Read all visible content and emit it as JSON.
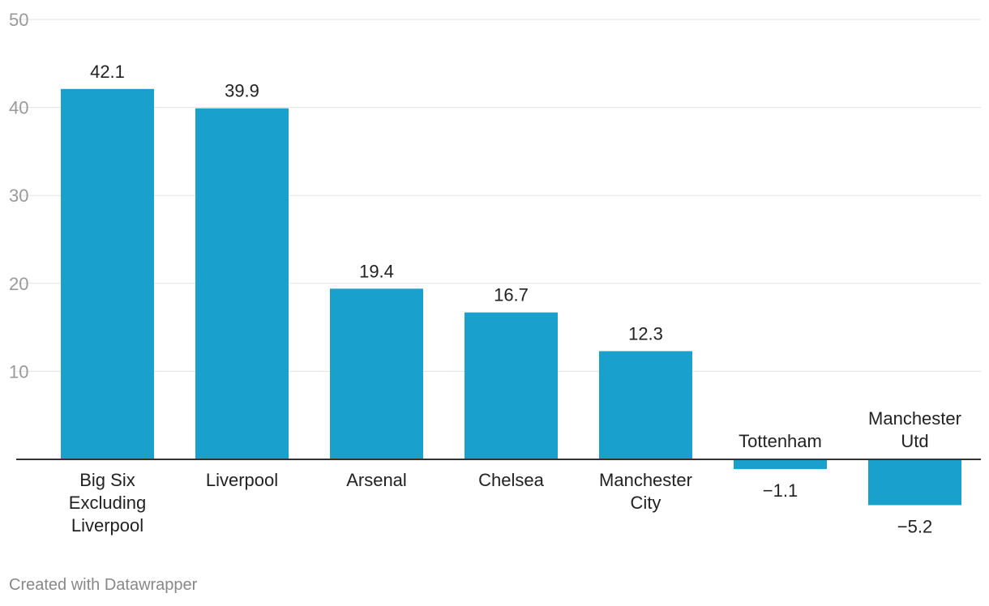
{
  "chart_data": {
    "type": "bar",
    "categories": [
      "Big Six Excluding Liverpool",
      "Liverpool",
      "Arsenal",
      "Chelsea",
      "Manchester City",
      "Tottenham",
      "Manchester Utd"
    ],
    "category_lines": [
      [
        "Big Six",
        "Excluding",
        "Liverpool"
      ],
      [
        "Liverpool"
      ],
      [
        "Arsenal"
      ],
      [
        "Chelsea"
      ],
      [
        "Manchester",
        "City"
      ],
      [
        "Tottenham"
      ],
      [
        "Manchester",
        "Utd"
      ]
    ],
    "values": [
      42.1,
      39.9,
      19.4,
      16.7,
      12.3,
      -1.1,
      -5.2
    ],
    "value_labels": [
      "42.1",
      "39.9",
      "19.4",
      "16.7",
      "12.3",
      "−1.1",
      "−5.2"
    ],
    "y_ticks": [
      10,
      20,
      30,
      40,
      50
    ],
    "y_tick_labels": [
      "10",
      "20",
      "30",
      "40",
      "50"
    ],
    "ylim": [
      -5.2,
      50
    ],
    "grid": true,
    "legend": "none",
    "bar_color": "#1aa0cc",
    "title": "",
    "xlabel": "",
    "ylabel": ""
  },
  "footer": {
    "credit": "Created with Datawrapper"
  }
}
